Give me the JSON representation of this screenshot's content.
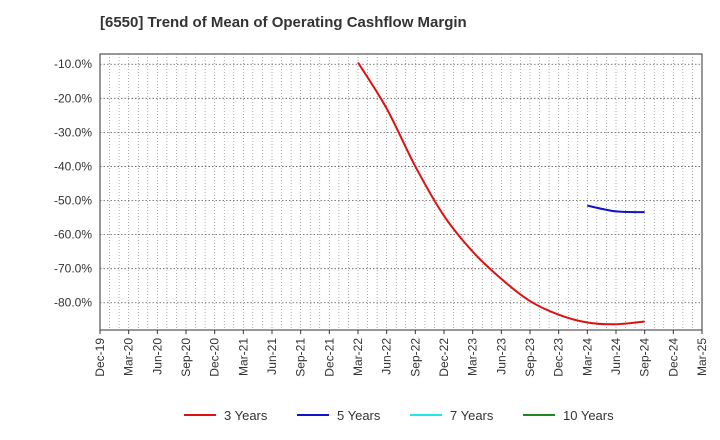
{
  "chart_data": {
    "type": "line",
    "title": "[6550]  Trend of Mean of Operating Cashflow Margin",
    "xlabel": "",
    "ylabel": "",
    "ylim": [
      -88.0,
      -7.0
    ],
    "y_ticks": [
      -10.0,
      -20.0,
      -30.0,
      -40.0,
      -50.0,
      -60.0,
      -70.0,
      -80.0
    ],
    "y_tick_labels": [
      "-10.0%",
      "-20.0%",
      "-30.0%",
      "-40.0%",
      "-50.0%",
      "-60.0%",
      "-70.0%",
      "-80.0%"
    ],
    "categories": [
      "Dec-19",
      "Mar-20",
      "Jun-20",
      "Sep-20",
      "Dec-20",
      "Mar-21",
      "Jun-21",
      "Sep-21",
      "Dec-21",
      "Mar-22",
      "Jun-22",
      "Sep-22",
      "Dec-22",
      "Mar-23",
      "Jun-23",
      "Sep-23",
      "Dec-23",
      "Mar-24",
      "Jun-24",
      "Sep-24",
      "Dec-24",
      "Mar-25"
    ],
    "grid": true,
    "legend_position": "bottom",
    "series": [
      {
        "name": "3 Years",
        "color": "#dd1111",
        "points": [
          {
            "x": "Mar-22",
            "y": -9.5
          },
          {
            "x": "Jun-22",
            "y": -23.0
          },
          {
            "x": "Sep-22",
            "y": -40.0
          },
          {
            "x": "Dec-22",
            "y": -54.5
          },
          {
            "x": "Mar-23",
            "y": -65.0
          },
          {
            "x": "Jun-23",
            "y": -73.0
          },
          {
            "x": "Sep-23",
            "y": -79.5
          },
          {
            "x": "Dec-23",
            "y": -83.5
          },
          {
            "x": "Mar-24",
            "y": -85.8
          },
          {
            "x": "Jun-24",
            "y": -86.3
          },
          {
            "x": "Sep-24",
            "y": -85.5
          }
        ]
      },
      {
        "name": "5 Years",
        "color": "#1111cc",
        "points": [
          {
            "x": "Mar-24",
            "y": -51.5
          },
          {
            "x": "Jun-24",
            "y": -53.2
          },
          {
            "x": "Sep-24",
            "y": -53.4
          }
        ]
      },
      {
        "name": "7 Years",
        "color": "#22e5e5",
        "points": []
      },
      {
        "name": "10 Years",
        "color": "#228822",
        "points": []
      }
    ]
  }
}
